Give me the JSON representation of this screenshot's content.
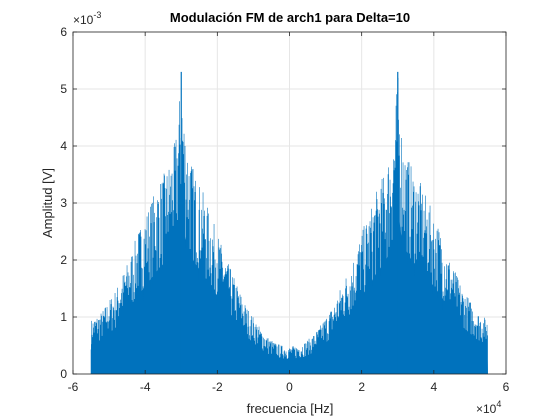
{
  "chart_data": {
    "type": "line",
    "title": "Modulación FM de arch1 para Delta=10",
    "xlabel": "frecuencia [Hz]",
    "ylabel": "Amplitud [V]",
    "xlim": [
      -60000,
      60000
    ],
    "ylim": [
      0,
      0.006
    ],
    "x_ticks": [
      -60000,
      -40000,
      -20000,
      0,
      20000,
      40000,
      60000
    ],
    "x_tick_labels": [
      "-6",
      "-4",
      "-2",
      "0",
      "2",
      "4",
      "6"
    ],
    "y_ticks": [
      0,
      0.001,
      0.002,
      0.003,
      0.004,
      0.005,
      0.006
    ],
    "y_tick_labels": [
      "0",
      "1",
      "2",
      "3",
      "4",
      "5",
      "6"
    ],
    "x_exponent_label": "×10",
    "x_exponent": "4",
    "y_exponent_label": "×10",
    "y_exponent": "-3",
    "grid": true,
    "legend": "none",
    "color": "#0072BD",
    "series": [
      {
        "x": [
          -55000,
          -54000,
          -52000,
          -50000,
          -48000,
          -46000,
          -44000,
          -42000,
          -40000,
          -38000,
          -36000,
          -34000,
          -33000,
          -32000,
          -31000,
          -30000,
          -29000,
          -28000,
          -27000,
          -26000,
          -24000,
          -22000,
          -20000,
          -18000,
          -16000,
          -14000,
          -12000,
          -10000,
          -8000,
          -6000,
          -4000,
          -2000,
          0,
          2000,
          4000,
          6000,
          8000,
          10000,
          12000,
          14000,
          16000,
          18000,
          20000,
          22000,
          24000,
          26000,
          27000,
          28000,
          29000,
          30000,
          31000,
          32000,
          33000,
          34000,
          36000,
          38000,
          40000,
          42000,
          44000,
          46000,
          48000,
          50000,
          52000,
          54000,
          55000
        ],
        "envelope": [
          0.00095,
          0.001,
          0.0011,
          0.0013,
          0.0015,
          0.0018,
          0.0021,
          0.0025,
          0.0028,
          0.0031,
          0.0034,
          0.0036,
          0.0038,
          0.004,
          0.0044,
          0.0053,
          0.0044,
          0.004,
          0.0037,
          0.0035,
          0.0032,
          0.0028,
          0.0025,
          0.0021,
          0.0018,
          0.0015,
          0.0012,
          0.001,
          0.0008,
          0.00065,
          0.00055,
          0.0005,
          0.00048,
          0.0005,
          0.00055,
          0.00065,
          0.0008,
          0.001,
          0.0012,
          0.0015,
          0.0018,
          0.0021,
          0.0025,
          0.0028,
          0.0032,
          0.0035,
          0.0037,
          0.004,
          0.0044,
          0.0053,
          0.0044,
          0.004,
          0.0038,
          0.0036,
          0.0034,
          0.0031,
          0.0028,
          0.0025,
          0.0021,
          0.0018,
          0.0015,
          0.0013,
          0.0011,
          0.001,
          0.00095
        ]
      }
    ]
  }
}
